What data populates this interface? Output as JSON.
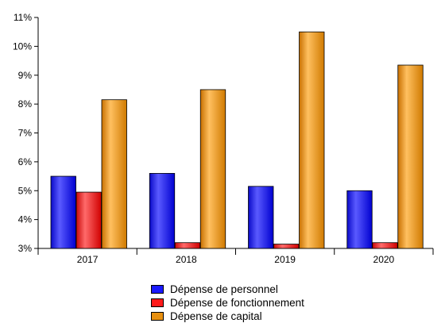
{
  "chart_data": {
    "type": "bar",
    "categories": [
      "2017",
      "2018",
      "2019",
      "2020"
    ],
    "series": [
      {
        "name": "Dépense de personnel",
        "values": [
          5.5,
          5.6,
          5.15,
          5.0
        ],
        "color": "#1a1aff"
      },
      {
        "name": "Dépense de fonctionnement",
        "values": [
          4.95,
          3.2,
          3.15,
          3.2
        ],
        "color": "#ff1a1a"
      },
      {
        "name": "Dépense de capital",
        "values": [
          8.15,
          8.5,
          10.5,
          9.35
        ],
        "color": "#e8900f"
      }
    ],
    "ylim": [
      3,
      11
    ],
    "yticks": [
      "3%",
      "4%",
      "5%",
      "6%",
      "7%",
      "8%",
      "9%",
      "10%",
      "11%"
    ],
    "title": "",
    "xlabel": "",
    "ylabel": "",
    "grid": false,
    "legend_position": "bottom"
  }
}
